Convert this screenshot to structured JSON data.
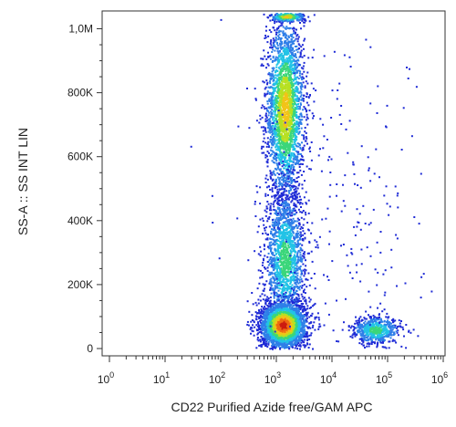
{
  "chart_data": {
    "type": "scatter",
    "title": "",
    "xlabel": "CD22 Purified Azide free/GAM APC",
    "ylabel": "SS-A :: SS INT LIN",
    "x_scale": "log",
    "xlim": [
      1,
      1000000
    ],
    "ylim": [
      0,
      1050000
    ],
    "x_ticks": [
      {
        "value": 1,
        "base": "10",
        "exp": "0"
      },
      {
        "value": 10,
        "base": "10",
        "exp": "1"
      },
      {
        "value": 100,
        "base": "10",
        "exp": "2"
      },
      {
        "value": 1000,
        "base": "10",
        "exp": "3"
      },
      {
        "value": 10000,
        "base": "10",
        "exp": "4"
      },
      {
        "value": 100000,
        "base": "10",
        "exp": "5"
      },
      {
        "value": 1000000,
        "base": "10",
        "exp": "6"
      }
    ],
    "y_ticks": [
      {
        "value": 0,
        "label": "0"
      },
      {
        "value": 200000,
        "label": "200K"
      },
      {
        "value": 400000,
        "label": "400K"
      },
      {
        "value": 600000,
        "label": "600K"
      },
      {
        "value": 800000,
        "label": "800K"
      },
      {
        "value": 1000000,
        "label": "1,0M"
      }
    ],
    "grid": false,
    "legend": "none",
    "density_colors": [
      "#1f2bd6",
      "#2f7fe8",
      "#22c3e6",
      "#3bd67a",
      "#b7e022",
      "#f2c318",
      "#ee6a12",
      "#cc1b10"
    ],
    "populations": [
      {
        "x_center": 1400,
        "x_spread_decades": 0.17,
        "y_center": 750000,
        "y_spread": 140000,
        "density": "high",
        "count": 2600
      },
      {
        "x_center": 1400,
        "x_spread_decades": 0.18,
        "y_center": 280000,
        "y_spread": 110000,
        "density": "medium",
        "count": 1700
      },
      {
        "x_center": 1300,
        "x_spread_decades": 0.2,
        "y_center": 75000,
        "y_spread": 35000,
        "density": "very high",
        "count": 3000
      },
      {
        "x_center": 60000,
        "x_spread_decades": 0.22,
        "y_center": 60000,
        "y_spread": 22000,
        "density": "medium",
        "count": 600
      },
      {
        "x_center": 1500,
        "x_spread_decades": 0.16,
        "y_center": 1040000,
        "y_spread": 8000,
        "density": "high",
        "count": 350
      },
      {
        "x_center": 20000,
        "x_spread_decades": 0.9,
        "y_center": 350000,
        "y_spread": 280000,
        "density": "sparse",
        "count": 260
      }
    ]
  }
}
